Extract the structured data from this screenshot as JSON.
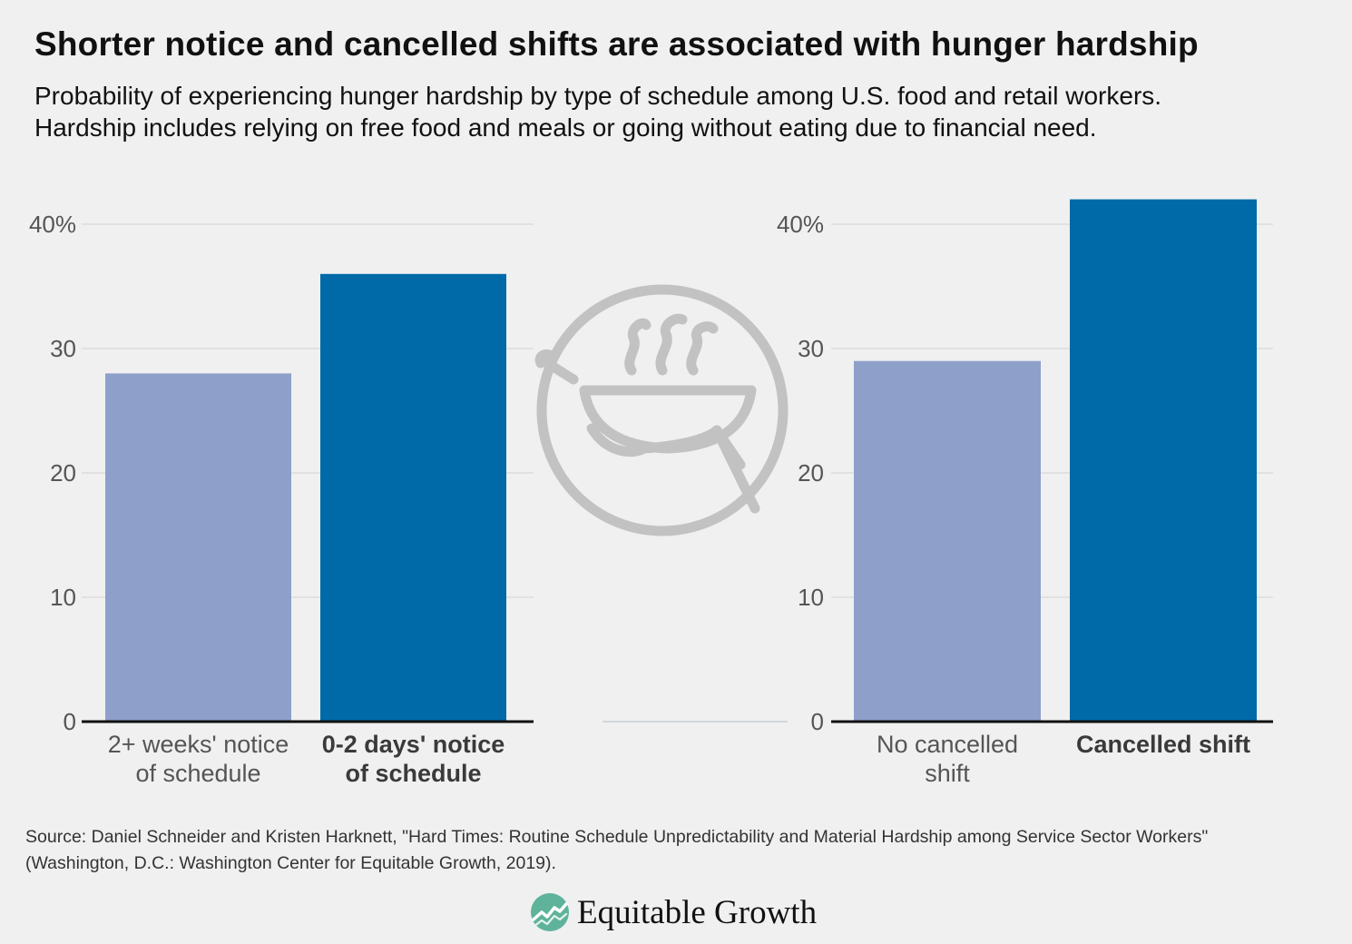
{
  "title": "Shorter notice and cancelled shifts are associated with hunger hardship",
  "subtitle": {
    "line1": "Probability of experiencing hunger hardship by type of schedule among U.S. food and retail workers.",
    "line2": "Hardship includes relying on free food and meals or going without eating due to financial need."
  },
  "icon": "bowl-steam-hand-icon",
  "colors": {
    "light_bar": "#8e9fca",
    "dark_bar": "#006aa8",
    "grid": "#dcdcdc",
    "axis": "#111111",
    "icon": "#c2c2c2"
  },
  "chart_data": [
    {
      "type": "bar",
      "categories": [
        [
          "2+ weeks' notice",
          "of schedule"
        ],
        [
          "0-2 days' notice",
          "of schedule"
        ]
      ],
      "values": [
        28,
        36
      ],
      "emphasis": [
        false,
        true
      ],
      "yticks": [
        "0",
        "10",
        "20",
        "30",
        "40%"
      ],
      "ylim": [
        0,
        40
      ],
      "grid": true
    },
    {
      "type": "bar",
      "categories": [
        [
          "No cancelled",
          "shift"
        ],
        [
          "Cancelled shift"
        ]
      ],
      "values": [
        29,
        42
      ],
      "emphasis": [
        false,
        true
      ],
      "yticks": [
        "0",
        "10",
        "20",
        "30",
        "40%"
      ],
      "ylim": [
        0,
        40
      ],
      "grid": true
    }
  ],
  "source": {
    "line1": "Source: Daniel Schneider and Kristen Harknett, \"Hard Times: Routine Schedule Unpredictability and Material Hardship among Service Sector Workers\"",
    "line2": "(Washington, D.C.: Washington Center for Equitable Growth, 2019)."
  },
  "brand": {
    "name": "Equitable Growth",
    "logo": "equitable-growth-logo-icon"
  }
}
